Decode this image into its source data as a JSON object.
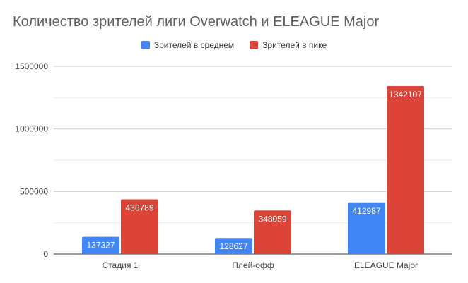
{
  "chart_data": {
    "type": "bar",
    "title": "Количество зрителей лиги Overwatch и ELEAGUE Major",
    "xlabel": "",
    "ylabel": "",
    "categories": [
      "Стадия 1",
      "Плей-офф",
      "ELEAGUE Major"
    ],
    "series": [
      {
        "name": "Зрителей в среднем",
        "values": [
          137327,
          128627,
          412987
        ],
        "color": "#4285f4"
      },
      {
        "name": "Зрителей в пике",
        "values": [
          436789,
          348059,
          1342107
        ],
        "color": "#db4437"
      }
    ],
    "ylim": [
      0,
      1500000
    ],
    "yticks": [
      0,
      500000,
      1000000,
      1500000
    ],
    "ytick_labels": [
      "0",
      "500000",
      "1000000",
      "1500000"
    ],
    "grid": true,
    "legend_position": "top-center"
  }
}
